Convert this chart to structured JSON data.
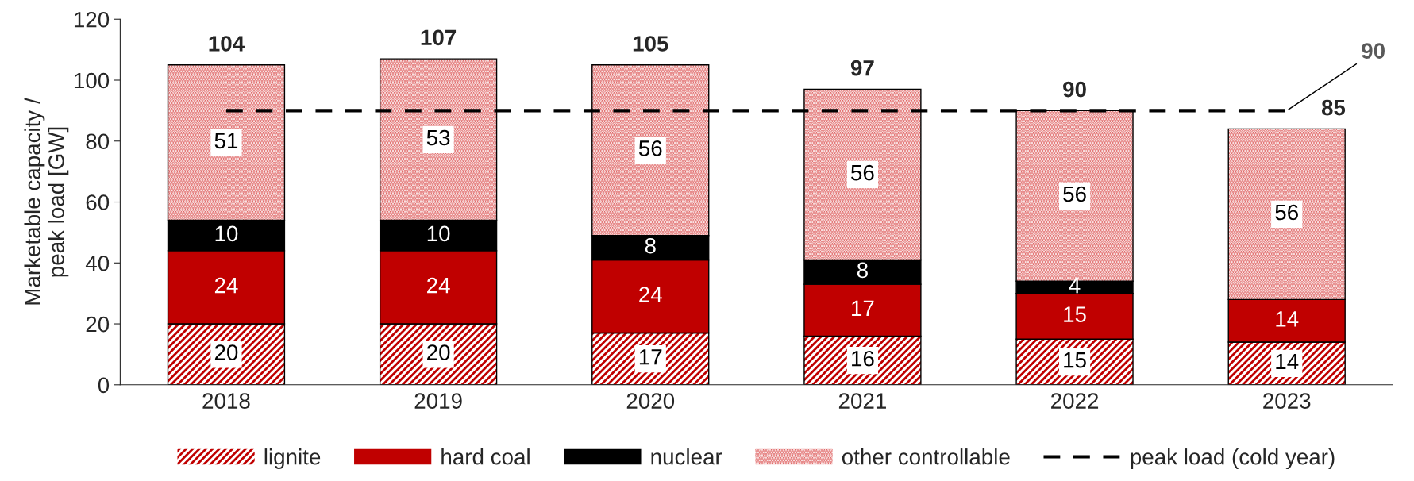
{
  "chart_data": {
    "type": "bar",
    "stacked": true,
    "ylabel": "Marketable capacity /\npeak load [GW]",
    "categories": [
      "2018",
      "2019",
      "2020",
      "2021",
      "2022",
      "2023"
    ],
    "series": [
      {
        "name": "lignite",
        "color": "#c00000",
        "values": [
          20,
          20,
          17,
          16,
          15,
          14
        ],
        "value_labels": [
          "20",
          "20",
          "17",
          "16",
          "15",
          "14"
        ]
      },
      {
        "name": "hard coal",
        "color": "#c00000",
        "values": [
          24,
          24,
          24,
          17,
          15,
          14
        ],
        "value_labels": [
          "24",
          "24",
          "24",
          "17",
          "15",
          "14"
        ]
      },
      {
        "name": "nuclear",
        "color": "#000000",
        "values": [
          10,
          10,
          8,
          8,
          4,
          0
        ],
        "value_labels": [
          "10",
          "10",
          "8",
          "8",
          "4",
          null
        ]
      },
      {
        "name": "other controllable",
        "color": "#e06666",
        "values": [
          51,
          53,
          56,
          56,
          56,
          56
        ],
        "value_labels": [
          "51",
          "53",
          "56",
          "56",
          "56",
          "56"
        ]
      },
      {
        "name": "peak load (cold year)",
        "type": "line",
        "line_style": "dashed",
        "color": "#000000",
        "values": [
          90,
          90,
          90,
          90,
          90,
          90
        ]
      }
    ],
    "totals": [
      "104",
      "107",
      "105",
      "97",
      "90",
      "85"
    ],
    "annotations": [
      {
        "text": "90",
        "x": "2023",
        "y": 90
      }
    ],
    "ylim": [
      0,
      120
    ],
    "yticks": [
      0,
      20,
      40,
      60,
      80,
      100,
      120
    ],
    "grid": false,
    "legend": "bottom"
  }
}
